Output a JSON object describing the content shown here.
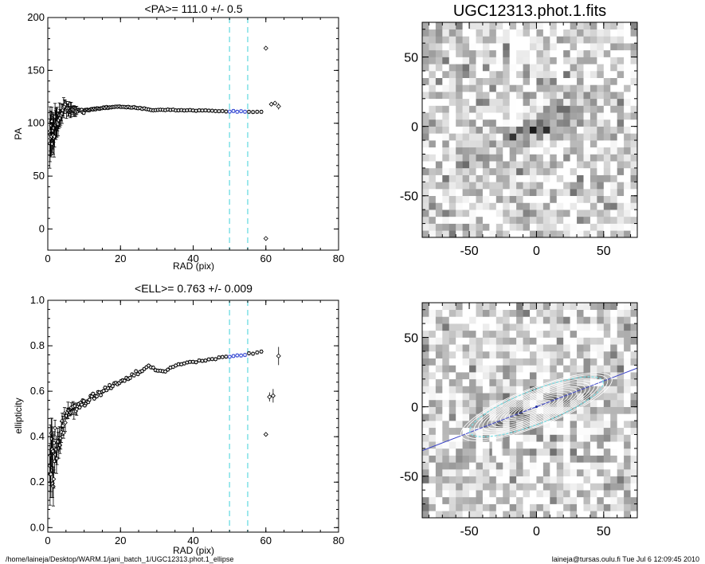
{
  "chart_data": [
    {
      "type": "scatter",
      "title": "<PA>= 111.0 +/-   0.5",
      "xlabel": "RAD (pix)",
      "ylabel": "PA",
      "xlim": [
        0,
        80
      ],
      "ylim": [
        -20,
        200
      ],
      "xticks": [
        "0",
        "20",
        "40",
        "60",
        "80"
      ],
      "yticks": [
        "0",
        "50",
        "100",
        "150",
        "200"
      ],
      "vlines": [
        50,
        55
      ],
      "fit_range_color": "#2a3fd0",
      "vline_color": "#7fe0e6",
      "outliers": [
        {
          "x": 60.0,
          "y": 171,
          "err": 2
        },
        {
          "x": 60.0,
          "y": -9,
          "err": 1.5
        },
        {
          "x": 61.5,
          "y": 118,
          "err": 2
        },
        {
          "x": 62.5,
          "y": 119,
          "err": 2
        },
        {
          "x": 63.5,
          "y": 116,
          "err": 3
        }
      ]
    },
    {
      "type": "scatter",
      "title": "<ELL>= 0.763 +/-  0.009",
      "xlabel": "RAD (pix)",
      "ylabel": "ellipticity",
      "xlim": [
        0,
        80
      ],
      "ylim": [
        -0.02,
        1.0
      ],
      "xticks": [
        "0",
        "20",
        "40",
        "60",
        "80"
      ],
      "yticks": [
        "0.0",
        "0.2",
        "0.4",
        "0.6",
        "0.8",
        "1.0"
      ],
      "vlines": [
        50,
        55
      ],
      "fit_range_color": "#2a3fd0",
      "vline_color": "#7fe0e6",
      "outliers": [
        {
          "x": 60.0,
          "y": 0.41,
          "err": 0.005
        },
        {
          "x": 61.0,
          "y": 0.575,
          "err": 0.02
        },
        {
          "x": 62.0,
          "y": 0.58,
          "err": 0.03
        },
        {
          "x": 63.5,
          "y": 0.755,
          "err": 0.04
        }
      ]
    },
    {
      "type": "heatmap",
      "title": "UGC12313.phot.1.fits",
      "xlim": [
        -85,
        75
      ],
      "ylim": [
        -80,
        75
      ],
      "xticks": [
        "-50",
        "0",
        "50"
      ],
      "yticks": [
        "-50",
        "0",
        "50"
      ],
      "pa_deg": 111.0,
      "ellipticity": 0.763
    },
    {
      "type": "heatmap",
      "title": "",
      "xlim": [
        -85,
        75
      ],
      "ylim": [
        -80,
        75
      ],
      "xticks": [
        "-50",
        "0",
        "50"
      ],
      "yticks": [
        "-50",
        "0",
        "50"
      ],
      "pa_deg": 111.0,
      "ellipticity": 0.763
    }
  ],
  "footer": {
    "path": "/home/laineja/Desktop/WARM.1/jani_batch_1/UGC12313.phot.1_ellipse",
    "stamp": "laineja@tursas.oulu.fi  Tue Jul  6 12:09:45 2010"
  }
}
